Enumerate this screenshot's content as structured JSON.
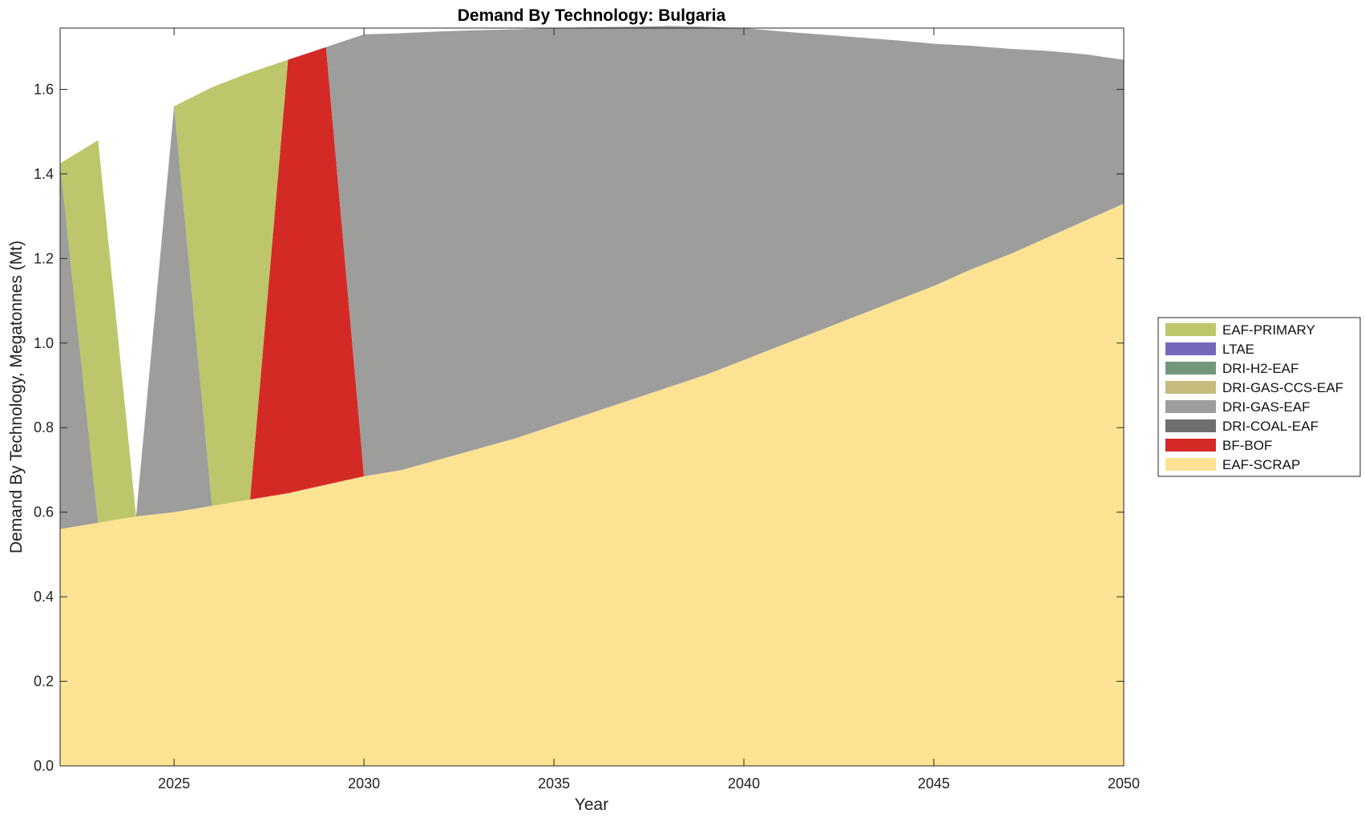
{
  "chart_data": {
    "type": "area",
    "stacked": true,
    "title": "Demand By Technology: Bulgaria",
    "xlabel": "Year",
    "ylabel": "Demand By Technology, Megatonnes (Mt)",
    "xlim": [
      2022,
      2050
    ],
    "ylim": [
      0,
      1.745
    ],
    "xticks": [
      2025,
      2030,
      2035,
      2040,
      2045,
      2050
    ],
    "yticks": [
      0.0,
      0.2,
      0.4,
      0.6,
      0.8,
      1.0,
      1.2,
      1.4,
      1.6
    ],
    "ytick_labels": [
      "0.0",
      "0.2",
      "0.4",
      "0.6",
      "0.8",
      "1.0",
      "1.2",
      "1.4",
      "1.6"
    ],
    "grid": false,
    "legend_position": "right",
    "x": [
      2022,
      2023,
      2024,
      2025,
      2026,
      2027,
      2028,
      2029,
      2030,
      2031,
      2032,
      2033,
      2034,
      2035,
      2036,
      2037,
      2038,
      2039,
      2040,
      2041,
      2042,
      2043,
      2044,
      2045,
      2046,
      2047,
      2048,
      2049,
      2050
    ],
    "series": [
      {
        "name": "EAF-SCRAP",
        "color": "#FDE393",
        "values": [
          0.56,
          0.575,
          0.59,
          0.6,
          0.615,
          0.63,
          0.645,
          0.665,
          0.685,
          0.7,
          0.725,
          0.75,
          0.775,
          0.805,
          0.835,
          0.865,
          0.895,
          0.925,
          0.96,
          0.995,
          1.03,
          1.065,
          1.1,
          1.135,
          1.175,
          1.21,
          1.25,
          1.29,
          1.33
        ]
      },
      {
        "name": "BF-BOF",
        "color": "#D42A26",
        "values": [
          0,
          0,
          0,
          0,
          0,
          0,
          1.025,
          1.035,
          0,
          0,
          0,
          0,
          0,
          0,
          0,
          0,
          0,
          0,
          0,
          0,
          0,
          0,
          0,
          0,
          0,
          0,
          0,
          0,
          0
        ]
      },
      {
        "name": "DRI-COAL-EAF",
        "color": "#6E6E6E",
        "values": [
          0,
          0,
          0,
          0,
          0,
          0,
          0,
          0,
          0,
          0,
          0,
          0,
          0,
          0,
          0,
          0,
          0,
          0,
          0,
          0,
          0,
          0,
          0,
          0,
          0,
          0,
          0,
          0,
          0
        ]
      },
      {
        "name": "DRI-GAS-EAF",
        "color": "#9D9D9B",
        "values": [
          0.865,
          0,
          0,
          0.96,
          0,
          0,
          0,
          0,
          1.045,
          1.033,
          1.012,
          0.99,
          0.967,
          0.94,
          0.912,
          0.883,
          0.855,
          0.823,
          0.785,
          0.742,
          0.7,
          0.658,
          0.616,
          0.573,
          0.528,
          0.486,
          0.441,
          0.393,
          0.34
        ]
      },
      {
        "name": "DRI-GAS-CCS-EAF",
        "color": "#C6BC7E",
        "values": [
          0,
          0,
          0,
          0,
          0,
          0,
          0,
          0,
          0,
          0,
          0,
          0,
          0,
          0,
          0,
          0,
          0,
          0,
          0,
          0,
          0,
          0,
          0,
          0,
          0,
          0,
          0,
          0,
          0
        ]
      },
      {
        "name": "DRI-H2-EAF",
        "color": "#74977A",
        "values": [
          0,
          0,
          0,
          0,
          0,
          0,
          0,
          0,
          0,
          0,
          0,
          0,
          0,
          0,
          0,
          0,
          0,
          0,
          0,
          0,
          0,
          0,
          0,
          0,
          0,
          0,
          0,
          0,
          0
        ]
      },
      {
        "name": "LTAE",
        "color": "#7667BD",
        "values": [
          0,
          0,
          0,
          0,
          0,
          0,
          0,
          0,
          0,
          0,
          0,
          0,
          0,
          0,
          0,
          0,
          0,
          0,
          0,
          0,
          0,
          0,
          0,
          0,
          0,
          0,
          0,
          0,
          0
        ]
      },
      {
        "name": "EAF-PRIMARY",
        "color": "#BDC66A",
        "values": [
          0,
          0.905,
          0,
          0,
          0.99,
          1.01,
          0,
          0,
          0,
          0,
          0,
          0,
          0,
          0,
          0,
          0,
          0,
          0,
          0,
          0,
          0,
          0,
          0,
          0,
          0,
          0,
          0,
          0,
          0
        ]
      }
    ],
    "legend_order": [
      "EAF-PRIMARY",
      "LTAE",
      "DRI-H2-EAF",
      "DRI-GAS-CCS-EAF",
      "DRI-GAS-EAF",
      "DRI-COAL-EAF",
      "BF-BOF",
      "EAF-SCRAP"
    ]
  }
}
